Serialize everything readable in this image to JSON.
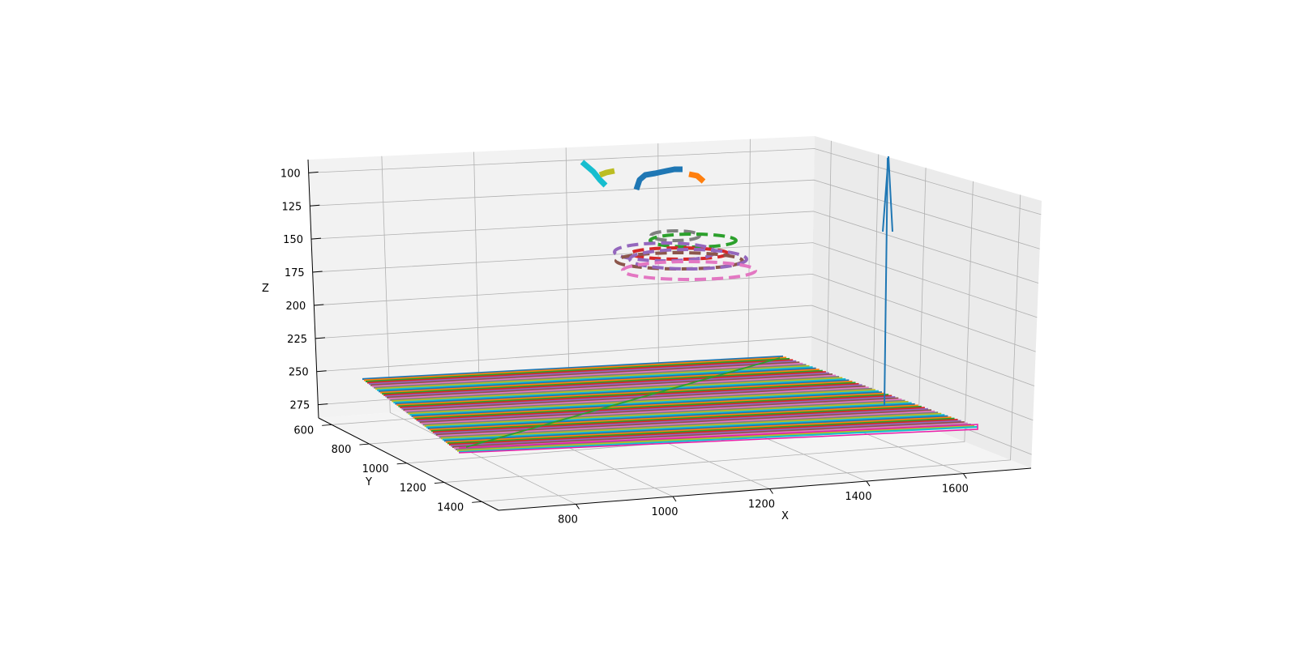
{
  "chart_data": {
    "type": "3d-line",
    "title": "",
    "xlabel": "X",
    "ylabel": "Y",
    "zlabel": "Z",
    "x_ticks": [
      "800",
      "1000",
      "1200",
      "1400",
      "1600"
    ],
    "y_ticks": [
      "600",
      "800",
      "1000",
      "1200",
      "1400"
    ],
    "z_ticks": [
      "100",
      "125",
      "150",
      "175",
      "200",
      "225",
      "250",
      "275"
    ],
    "z_axis_inverted": true,
    "grid": true,
    "pane_color": "#f2f2f2",
    "floor_lines": {
      "count": 60,
      "style": "solid",
      "colors": [
        "#1f77b4",
        "#ff7f0e",
        "#2ca02c",
        "#d62728",
        "#9467bd",
        "#8c564b",
        "#e377c2",
        "#7f7f7f",
        "#bcbd22",
        "#17becf"
      ],
      "z": 260
    },
    "diagonal_line": {
      "color": "#2ca02c"
    },
    "vertical_arrow": {
      "color": "#1f77b4"
    },
    "rings": [
      {
        "color": "#7f7f7f",
        "style": "dashed"
      },
      {
        "color": "#2ca02c",
        "style": "dashed"
      },
      {
        "color": "#d62728",
        "style": "dashed"
      },
      {
        "color": "#9467bd",
        "style": "dashed"
      },
      {
        "color": "#8c564b",
        "style": "dashed"
      },
      {
        "color": "#9467bd",
        "style": "dashed"
      },
      {
        "color": "#e377c2",
        "style": "dashed"
      }
    ],
    "top_strokes": [
      {
        "color": "#17becf"
      },
      {
        "color": "#bcbd22"
      },
      {
        "color": "#1f77b4"
      },
      {
        "color": "#ff7f0e"
      }
    ]
  }
}
